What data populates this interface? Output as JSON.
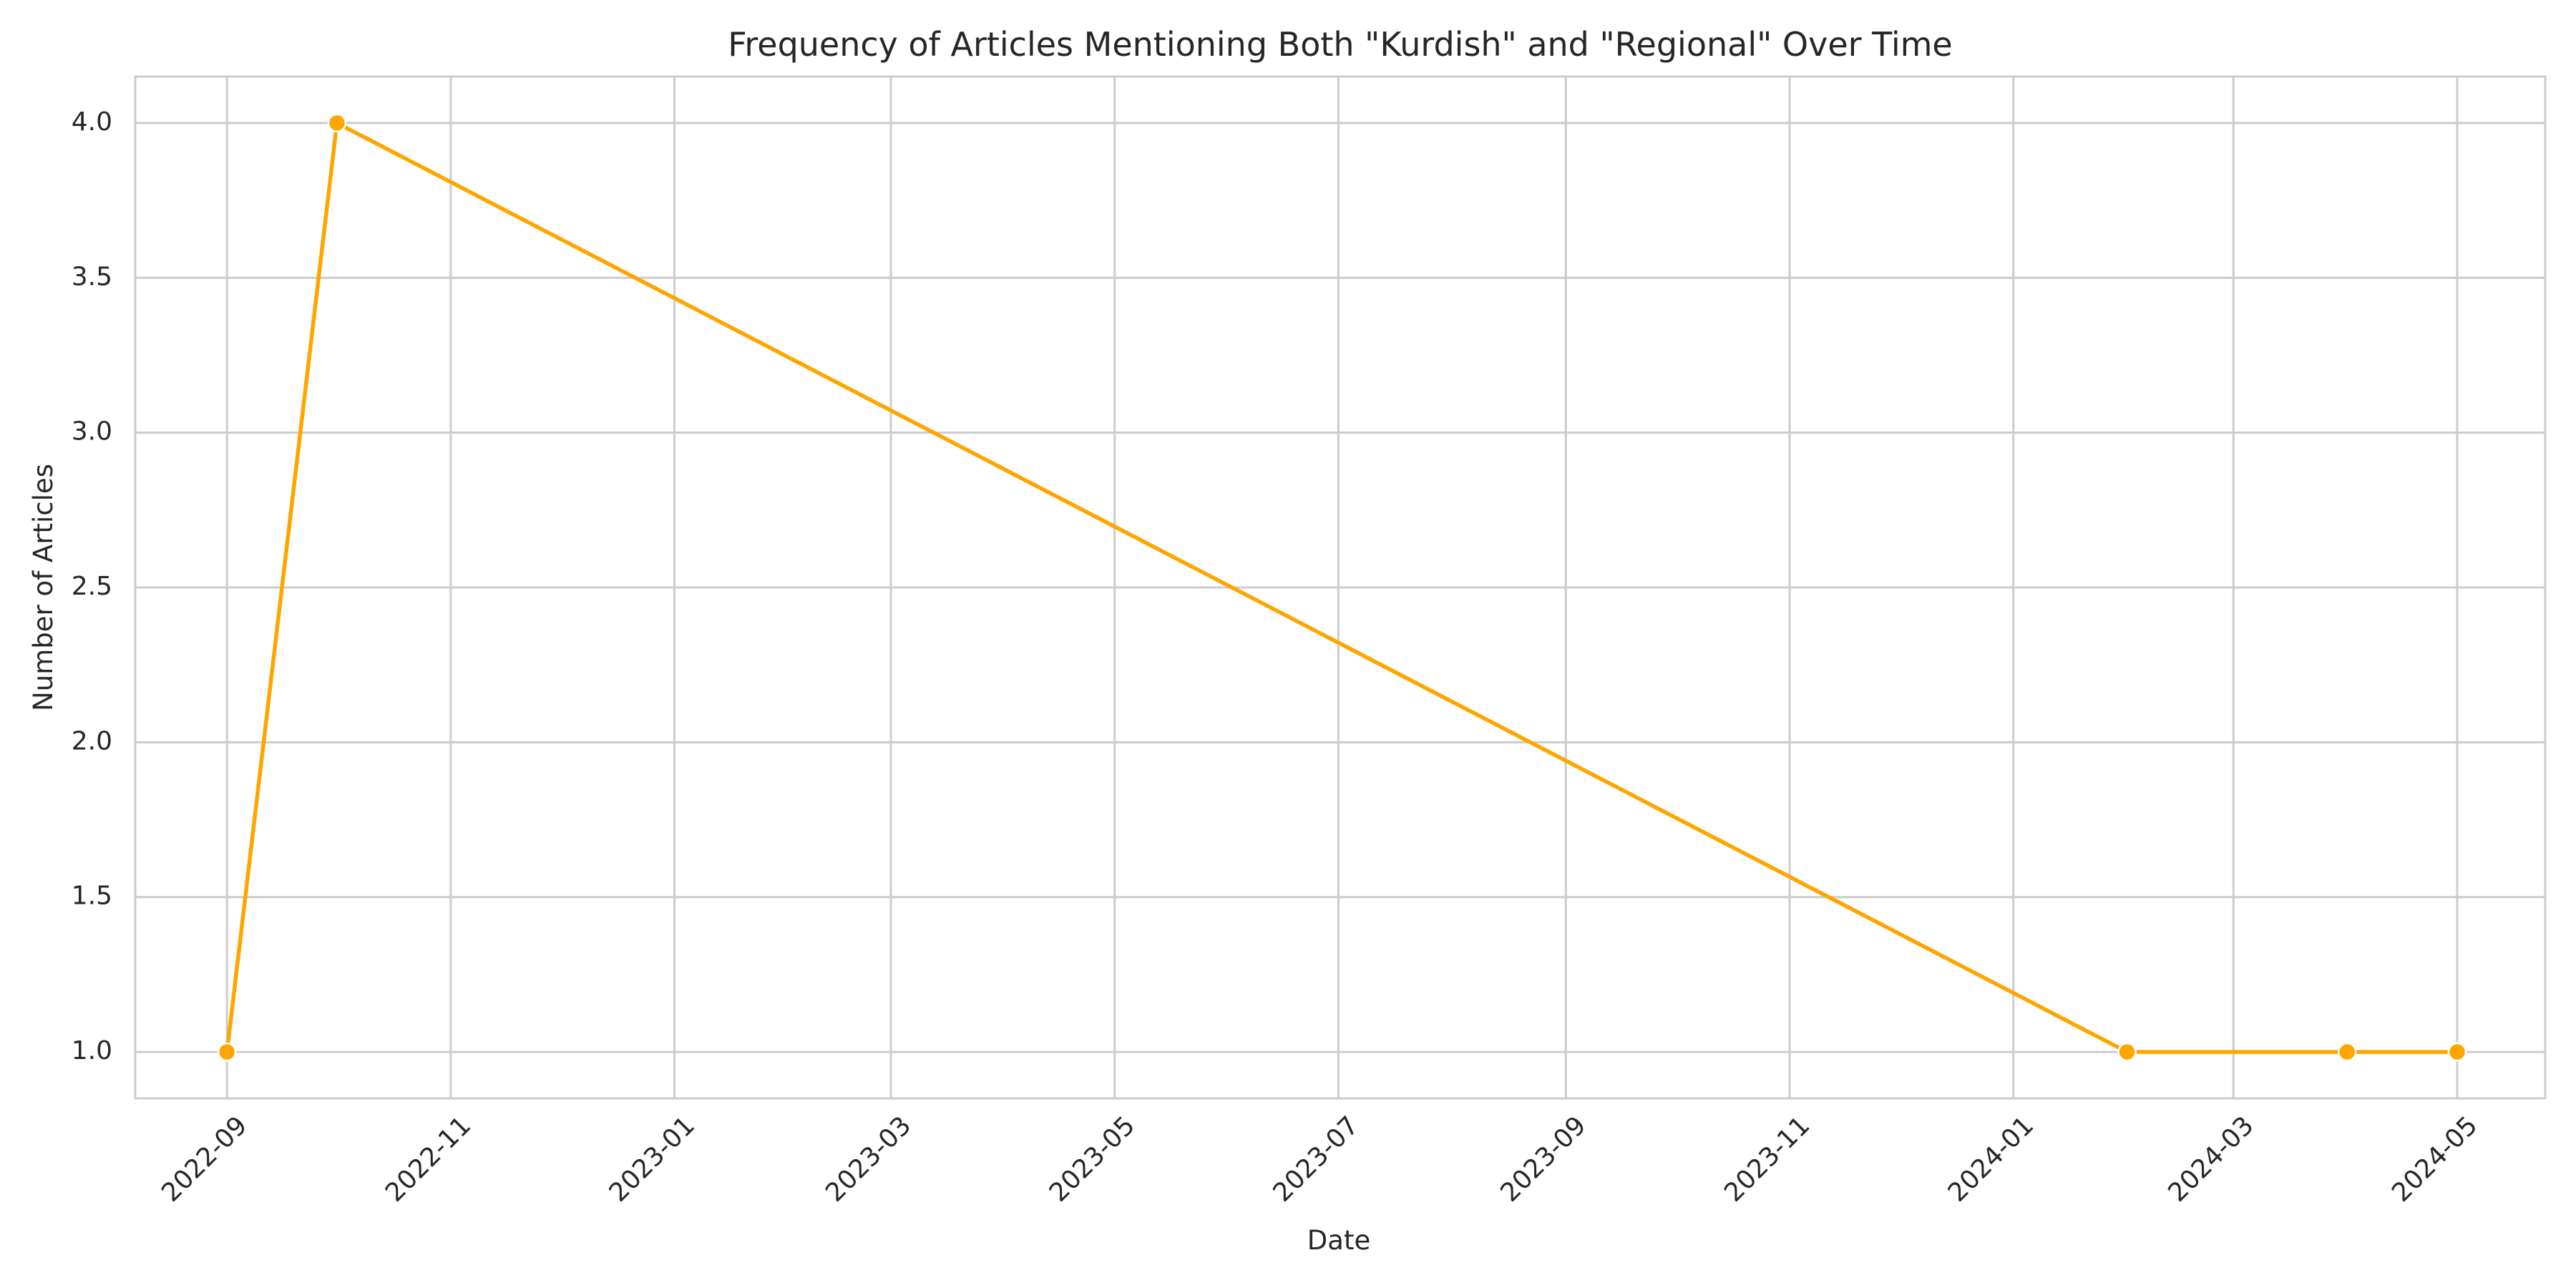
{
  "chart_data": {
    "type": "line",
    "title": "Frequency of Articles Mentioning Both \"Kurdish\" and \"Regional\" Over Time",
    "xlabel": "Date",
    "ylabel": "Number of Articles",
    "x_type": "date",
    "xlim": [
      "2022-08-07",
      "2024-05-25"
    ],
    "ylim": [
      0.85,
      4.15
    ],
    "x_ticks": [
      "2022-09-01",
      "2022-11-01",
      "2023-01-01",
      "2023-03-01",
      "2023-05-01",
      "2023-07-01",
      "2023-09-01",
      "2023-11-01",
      "2024-01-01",
      "2024-03-01",
      "2024-05-01"
    ],
    "x_tick_labels": [
      "2022-09",
      "2022-11",
      "2023-01",
      "2023-03",
      "2023-05",
      "2023-07",
      "2023-09",
      "2023-11",
      "2024-01",
      "2024-03",
      "2024-05"
    ],
    "y_ticks": [
      1.0,
      1.5,
      2.0,
      2.5,
      3.0,
      3.5,
      4.0
    ],
    "y_tick_labels": [
      "1.0",
      "1.5",
      "2.0",
      "2.5",
      "3.0",
      "3.5",
      "4.0"
    ],
    "grid": true,
    "series": [
      {
        "color": "#ffa500",
        "x": [
          "2022-09-01",
          "2022-10-01",
          "2024-02-01",
          "2024-04-01",
          "2024-05-01"
        ],
        "y": [
          1,
          4,
          1,
          1,
          1
        ]
      }
    ]
  }
}
